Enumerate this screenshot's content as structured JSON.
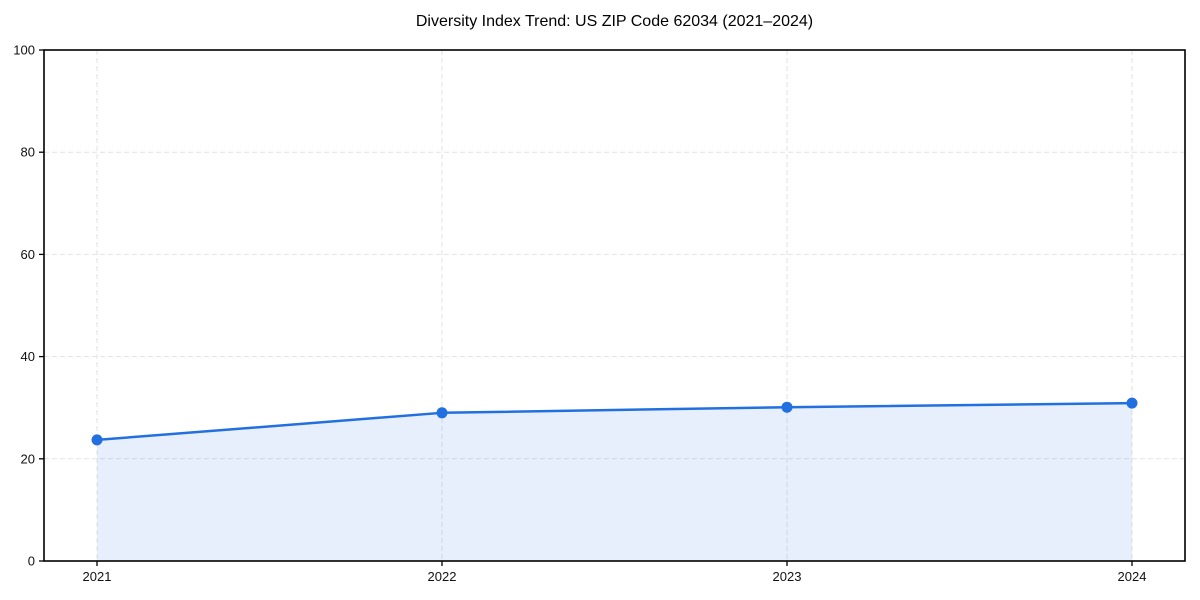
{
  "chart_data": {
    "type": "line",
    "title": "Diversity Index Trend: US ZIP Code 62034 (2021–2024)",
    "categories": [
      "2021",
      "2022",
      "2023",
      "2024"
    ],
    "series": [
      {
        "name": "Diversity Index",
        "values": [
          23.7,
          29.0,
          30.1,
          30.9
        ]
      }
    ],
    "xlabel": "",
    "ylabel": "",
    "ylim": [
      0,
      100
    ],
    "yticks": [
      0,
      20,
      40,
      60,
      80,
      100
    ],
    "grid": true,
    "grid_style": "dashed",
    "legend": false,
    "area": true,
    "marker": "circle",
    "colors": {
      "line": "#2270e0",
      "marker": "#2270e0",
      "area_fill": "rgba(34,112,224,0.11)",
      "gridline": "#e2e2e2",
      "spine": "#000000",
      "tick_text": "#111111"
    }
  }
}
